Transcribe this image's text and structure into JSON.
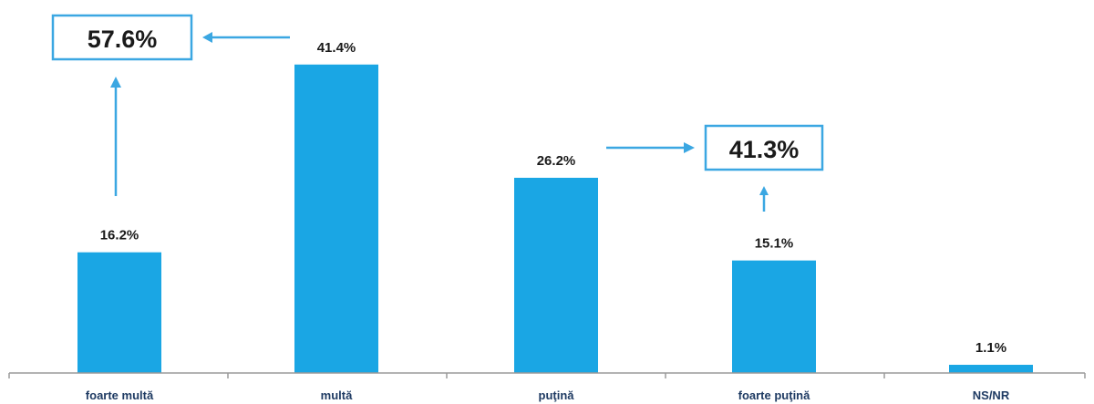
{
  "colors": {
    "bar": "#1aa6e4",
    "accent": "#3ba7e2",
    "axis": "#9a9a9a"
  },
  "chart_data": {
    "type": "bar",
    "categories": [
      "foarte multă",
      "multă",
      "puţină",
      "foarte puţină",
      "NS/NR"
    ],
    "values": [
      16.2,
      41.4,
      26.2,
      15.1,
      1.1
    ],
    "value_labels": [
      "16.2%",
      "41.4%",
      "26.2%",
      "15.1%",
      "1.1%"
    ],
    "ylim": [
      0,
      45
    ],
    "grid": false,
    "legend": "none",
    "annotations": [
      {
        "text": "57.6%",
        "groups": [
          "foarte multă",
          "multă"
        ]
      },
      {
        "text": "41.3%",
        "groups": [
          "puţină",
          "foarte puţină"
        ]
      }
    ]
  }
}
